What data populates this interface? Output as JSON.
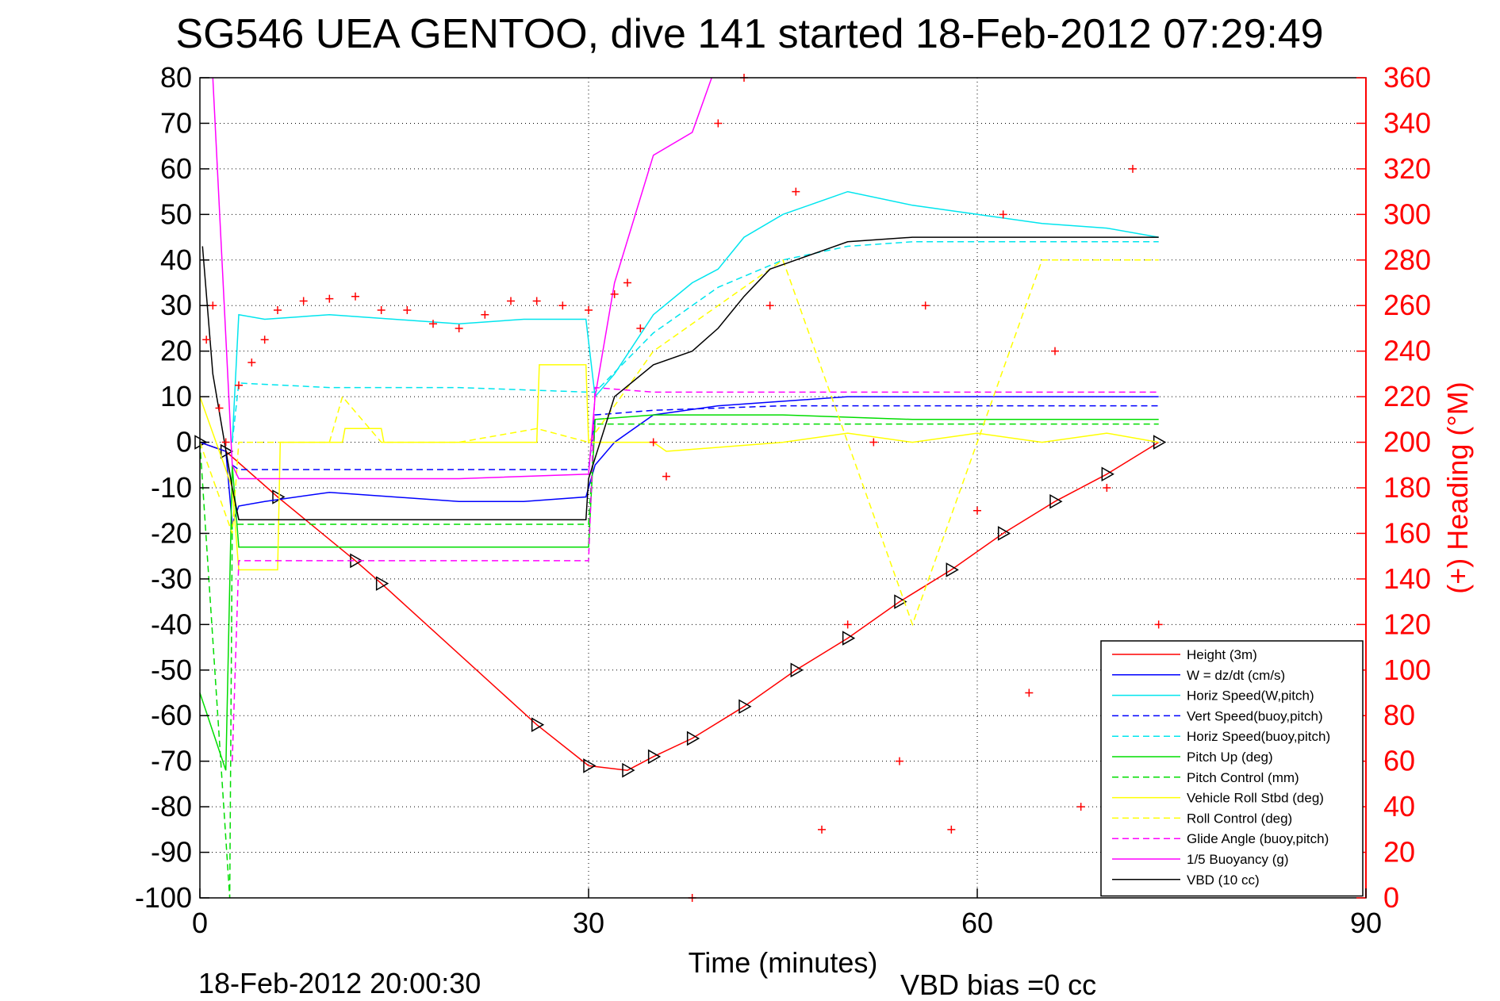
{
  "chart_data": {
    "type": "line",
    "title": "SG546 UEA GENTOO, dive 141 started 18-Feb-2012 07:29:49",
    "xlabel": "Time (minutes)",
    "ylabel": "",
    "y2label": "(+) Heading (°M)",
    "xlim": [
      0,
      90
    ],
    "ylim": [
      -100,
      80
    ],
    "y2lim": [
      0,
      360
    ],
    "x_ticks": [
      "0",
      "30",
      "60",
      "90"
    ],
    "y_ticks": [
      "80",
      "70",
      "60",
      "50",
      "40",
      "30",
      "20",
      "10",
      "0",
      "-10",
      "-20",
      "-30",
      "-40",
      "-50",
      "-60",
      "-70",
      "-80",
      "-90",
      "-100"
    ],
    "y2_ticks": [
      "360",
      "340",
      "320",
      "300",
      "280",
      "260",
      "240",
      "220",
      "200",
      "180",
      "160",
      "140",
      "120",
      "100",
      "80",
      "60",
      "40",
      "20",
      "0"
    ],
    "grid": true,
    "legend_position": "bottom-right",
    "footer_left": "18-Feb-2012 20:00:30",
    "footer_right": "VBD bias =0 cc",
    "series": [
      {
        "name": "Height (3m)",
        "color": "#ff0000",
        "dash": "solid",
        "marker": "triangle",
        "x": [
          0,
          2,
          6,
          12,
          14,
          26,
          30,
          33,
          35,
          38,
          42,
          46,
          50,
          54,
          58,
          62,
          66,
          70,
          74
        ],
        "y": [
          0,
          -2,
          -12,
          -26,
          -31,
          -62,
          -71,
          -72,
          -69,
          -65,
          -58,
          -50,
          -43,
          -35,
          -28,
          -20,
          -13,
          -7,
          0
        ]
      },
      {
        "name": "W = dz/dt (cm/s)",
        "color": "#0000ff",
        "dash": "solid",
        "x": [
          0,
          2,
          2.5,
          3,
          5,
          10,
          15,
          20,
          25,
          29.8,
          30.5,
          32,
          35,
          40,
          45,
          50,
          55,
          60,
          65,
          70,
          74
        ],
        "y": [
          0,
          -2,
          -18,
          -14,
          -13,
          -11,
          -12,
          -13,
          -13,
          -12,
          -5,
          0,
          6,
          8,
          9,
          10,
          10,
          10,
          10,
          10,
          10
        ]
      },
      {
        "name": "Horiz Speed(W,pitch)",
        "color": "#00e5ee",
        "dash": "solid",
        "x": [
          2.5,
          3,
          5,
          10,
          15,
          20,
          25,
          29.8,
          30.5,
          32,
          35,
          38,
          40,
          42,
          45,
          50,
          55,
          60,
          65,
          70,
          74
        ],
        "y": [
          0,
          28,
          27,
          28,
          27,
          26,
          27,
          27,
          10,
          15,
          28,
          35,
          38,
          45,
          50,
          55,
          52,
          50,
          48,
          47,
          45
        ]
      },
      {
        "name": "Vert Speed(buoy,pitch)",
        "color": "#0000ff",
        "dash": "dashed",
        "x": [
          2.5,
          3,
          10,
          20,
          30,
          30.5,
          35,
          45,
          55,
          65,
          74
        ],
        "y": [
          -5,
          -6,
          -6,
          -6,
          -6,
          6,
          7,
          8,
          8,
          8,
          8
        ]
      },
      {
        "name": "Horiz Speed(buoy,pitch)",
        "color": "#00e5ee",
        "dash": "dashed",
        "x": [
          2.5,
          3,
          10,
          20,
          30,
          30.5,
          35,
          40,
          45,
          50,
          55,
          60,
          65,
          70,
          74
        ],
        "y": [
          0,
          13,
          12,
          12,
          11,
          11,
          24,
          34,
          40,
          43,
          44,
          44,
          44,
          44,
          44
        ]
      },
      {
        "name": "Pitch Up (deg)",
        "color": "#00dd00",
        "dash": "solid",
        "x": [
          0,
          2,
          2.5,
          3,
          10,
          20,
          30,
          30.5,
          35,
          45,
          55,
          65,
          74
        ],
        "y": [
          -55,
          -72,
          -5,
          -23,
          -23,
          -23,
          -23,
          5,
          6,
          6,
          5,
          5,
          5
        ]
      },
      {
        "name": "Pitch Control (mm)",
        "color": "#00dd00",
        "dash": "dashed",
        "x": [
          0,
          2.3,
          2.5,
          3,
          10,
          20,
          30,
          30.5,
          35,
          45,
          55,
          65,
          74
        ],
        "y": [
          0,
          -100,
          -18,
          -18,
          -18,
          -18,
          -18,
          4,
          4,
          4,
          4,
          4,
          4
        ]
      },
      {
        "name": "Vehicle Roll Stbd (deg)",
        "color": "#ffff00",
        "dash": "solid",
        "x": [
          0,
          2.5,
          3,
          6,
          6.2,
          11,
          11.2,
          14,
          14.2,
          26,
          26.2,
          29.8,
          30,
          35,
          36,
          45,
          50,
          55,
          60,
          65,
          70,
          74
        ],
        "y": [
          10,
          -10,
          -28,
          -28,
          0,
          0,
          3,
          3,
          0,
          0,
          17,
          17,
          0,
          0,
          -2,
          0,
          2,
          0,
          2,
          0,
          2,
          0
        ]
      },
      {
        "name": "Roll Control (deg)",
        "color": "#ffff00",
        "dash": "dashed",
        "x": [
          0,
          2.5,
          3,
          10,
          11,
          14,
          20,
          26,
          30,
          35,
          45,
          55,
          65,
          74
        ],
        "y": [
          0,
          -20,
          0,
          0,
          10,
          0,
          0,
          3,
          0,
          20,
          40,
          -40,
          40,
          40
        ]
      },
      {
        "name": "Glide Angle (buoy,pitch)",
        "color": "#ff00ff",
        "dash": "dashed",
        "x": [
          2.5,
          3,
          10,
          20,
          30,
          30.5,
          35,
          45,
          55,
          65,
          74
        ],
        "y": [
          -70,
          -26,
          -26,
          -26,
          -26,
          12,
          11,
          11,
          11,
          11,
          11
        ]
      },
      {
        "name": "1/5 Buoyancy (g)",
        "color": "#ff00ff",
        "dash": "solid",
        "x": [
          1,
          2.5,
          3,
          10,
          20,
          30,
          30.5,
          32,
          35,
          38,
          39.5
        ],
        "y": [
          80,
          -5,
          -8,
          -8,
          -8,
          -7,
          10,
          35,
          63,
          68,
          80
        ]
      },
      {
        "name": "VBD (10 cc)",
        "color": "#000000",
        "dash": "solid",
        "x": [
          0.2,
          1,
          2.5,
          3,
          10,
          20,
          29.8,
          30,
          32,
          35,
          38,
          40,
          42,
          44,
          46,
          48,
          50,
          55,
          60,
          65,
          70,
          74
        ],
        "y": [
          43,
          15,
          -10,
          -17,
          -17,
          -17,
          -17,
          -8,
          10,
          17,
          20,
          25,
          32,
          38,
          40,
          42,
          44,
          45,
          45,
          45,
          45,
          45
        ]
      }
    ],
    "heading_series": {
      "name": "Heading",
      "axis": "right",
      "color": "#ff0000",
      "marker": "plus",
      "x": [
        0.5,
        1,
        1.5,
        2,
        3,
        4,
        5,
        6,
        8,
        10,
        12,
        14,
        16,
        18,
        20,
        22,
        24,
        26,
        28,
        30,
        32,
        33,
        34,
        35,
        36,
        38,
        40,
        42,
        44,
        46,
        48,
        50,
        52,
        54,
        56,
        58,
        60,
        62,
        64,
        66,
        68,
        70,
        72,
        74
      ],
      "y": [
        245,
        260,
        215,
        200,
        225,
        235,
        245,
        258,
        262,
        263,
        264,
        258,
        258,
        252,
        250,
        256,
        262,
        262,
        260,
        258,
        265,
        270,
        250,
        200,
        185,
        0,
        340,
        360,
        260,
        310,
        30,
        120,
        200,
        60,
        260,
        30,
        170,
        300,
        90,
        240,
        40,
        180,
        320,
        120
      ]
    }
  }
}
